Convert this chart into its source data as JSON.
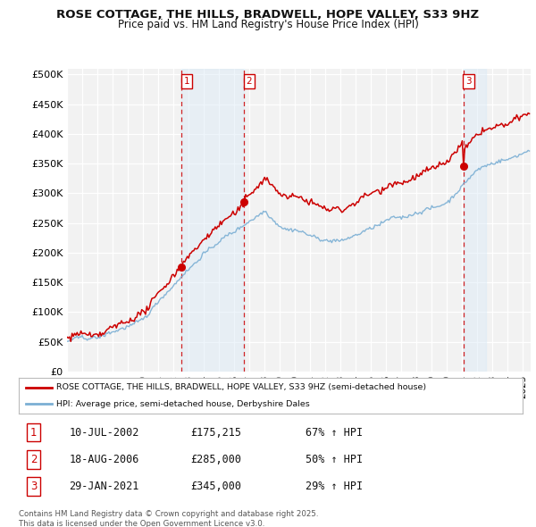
{
  "title": "ROSE COTTAGE, THE HILLS, BRADWELL, HOPE VALLEY, S33 9HZ",
  "subtitle": "Price paid vs. HM Land Registry's House Price Index (HPI)",
  "ylim": [
    0,
    510000
  ],
  "yticks": [
    0,
    50000,
    100000,
    150000,
    200000,
    250000,
    300000,
    350000,
    400000,
    450000,
    500000
  ],
  "ytick_labels": [
    "£0",
    "£50K",
    "£100K",
    "£150K",
    "£200K",
    "£250K",
    "£300K",
    "£350K",
    "£400K",
    "£450K",
    "£500K"
  ],
  "xlim_start": 1995.0,
  "xlim_end": 2025.5,
  "background_color": "#ffffff",
  "plot_bg_color": "#f2f2f2",
  "grid_color": "#ffffff",
  "sale1_date": 2002.53,
  "sale1_price": 175215,
  "sale1_label": "1",
  "sale1_hpi_pct": "67% ↑ HPI",
  "sale1_date_str": "10-JUL-2002",
  "sale2_date": 2006.63,
  "sale2_price": 285000,
  "sale2_label": "2",
  "sale2_hpi_pct": "50% ↑ HPI",
  "sale2_date_str": "18-AUG-2006",
  "sale3_date": 2021.08,
  "sale3_price": 345000,
  "sale3_label": "3",
  "sale3_hpi_pct": "29% ↑ HPI",
  "sale3_date_str": "29-JAN-2021",
  "house_line_color": "#cc0000",
  "hpi_line_color": "#7bafd4",
  "legend_house_label": "ROSE COTTAGE, THE HILLS, BRADWELL, HOPE VALLEY, S33 9HZ (semi-detached house)",
  "legend_hpi_label": "HPI: Average price, semi-detached house, Derbyshire Dales",
  "footnote": "Contains HM Land Registry data © Crown copyright and database right 2025.\nThis data is licensed under the Open Government Licence v3.0.",
  "sale_marker_color": "#cc0000",
  "vline_color": "#cc0000",
  "shade_color": "#daeaf7"
}
